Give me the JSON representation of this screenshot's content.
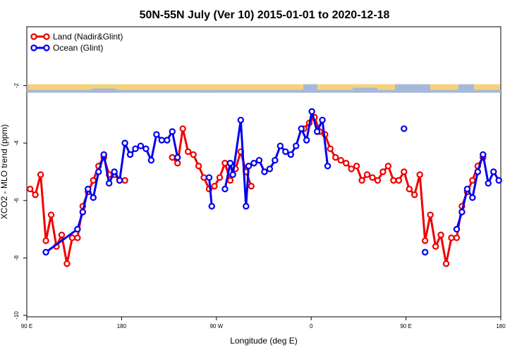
{
  "chart_data": {
    "type": "line",
    "title": "50N-55N July (Ver 10)   2015-01-01 to 2020-12-18",
    "xlabel": "Longitude (deg E)",
    "ylabel": "XCO2 - MLO trend (ppm)",
    "xlim": [
      90,
      450
    ],
    "ylim": [
      -10,
      0
    ],
    "x_ticks": [
      {
        "value": 90,
        "label": "90 E"
      },
      {
        "value": 162,
        "label": "180"
      },
      {
        "value": 234,
        "label": "90 W"
      },
      {
        "value": 306,
        "label": "0"
      },
      {
        "value": 378,
        "label": "90 E"
      },
      {
        "value": 450,
        "label": "180"
      }
    ],
    "y_ticks": [
      {
        "value": -2,
        "label": "-2"
      },
      {
        "value": -4,
        "label": "-4"
      },
      {
        "value": -6,
        "label": "-6"
      },
      {
        "value": -8,
        "label": "-8"
      },
      {
        "value": -10,
        "label": "-10"
      }
    ],
    "legend_position": "top-left",
    "land_mask_band": {
      "y_center": -2.1,
      "land_color": "#f5d37a",
      "ocean_color": "#a6b9db"
    },
    "series": [
      {
        "name": "Land (Nadir&Glint)",
        "color": "#ee0000",
        "points": [
          [
            92.5,
            -5.6
          ],
          [
            96.5,
            -5.8
          ],
          [
            100.5,
            -5.1
          ],
          [
            104.5,
            -7.4
          ],
          [
            108.5,
            -6.5
          ],
          [
            112.5,
            -7.6
          ],
          [
            116.5,
            -7.2
          ],
          [
            120.5,
            -8.2
          ],
          [
            124.5,
            -7.3
          ],
          [
            128.5,
            -7.3
          ],
          [
            132.5,
            -6.2
          ],
          [
            136.5,
            -5.7
          ],
          [
            140.5,
            -5.3
          ],
          [
            144.5,
            -4.8
          ],
          [
            148.5,
            -4.5
          ],
          [
            152.5,
            -5.1
          ],
          [
            156.5,
            -5.1
          ],
          [
            160.5,
            -5.3
          ],
          [
            164.5,
            -5.3
          ],
          [
            200.5,
            -4.5
          ],
          [
            204.5,
            -4.7
          ],
          [
            208.5,
            -3.5
          ],
          [
            212.5,
            -4.3
          ],
          [
            216.5,
            -4.4
          ],
          [
            220.5,
            -4.8
          ],
          [
            224.5,
            -5.2
          ],
          [
            228.5,
            -5.6
          ],
          [
            232.5,
            -5.5
          ],
          [
            236.5,
            -5.2
          ],
          [
            240.5,
            -4.7
          ],
          [
            244.5,
            -5.3
          ],
          [
            248.5,
            -4.9
          ],
          [
            252.5,
            -4.3
          ],
          [
            256.5,
            -5.0
          ],
          [
            260.5,
            -5.5
          ],
          [
            300.5,
            -3.5
          ],
          [
            304.5,
            -3.3
          ],
          [
            308.5,
            -3.1
          ],
          [
            312.5,
            -3.6
          ],
          [
            316.5,
            -3.7
          ],
          [
            320.5,
            -4.2
          ],
          [
            324.5,
            -4.5
          ],
          [
            328.5,
            -4.6
          ],
          [
            332.5,
            -4.7
          ],
          [
            336.5,
            -4.9
          ],
          [
            340.5,
            -4.8
          ],
          [
            344.5,
            -5.3
          ],
          [
            348.5,
            -5.1
          ],
          [
            352.5,
            -5.2
          ],
          [
            356.5,
            -5.3
          ],
          [
            360.5,
            -5.0
          ],
          [
            364.5,
            -4.8
          ],
          [
            368.5,
            -5.3
          ],
          [
            372.5,
            -5.3
          ],
          [
            376.5,
            -5.0
          ],
          [
            380.5,
            -5.6
          ],
          [
            384.5,
            -5.8
          ],
          [
            388.5,
            -5.1
          ],
          [
            392.5,
            -7.4
          ],
          [
            396.5,
            -6.5
          ],
          [
            400.5,
            -7.6
          ],
          [
            404.5,
            -7.2
          ],
          [
            408.5,
            -8.2
          ],
          [
            412.5,
            -7.3
          ],
          [
            416.5,
            -7.3
          ],
          [
            420.5,
            -6.2
          ],
          [
            424.5,
            -5.7
          ],
          [
            428.5,
            -5.3
          ],
          [
            432.5,
            -4.8
          ],
          [
            436.5,
            -4.5
          ]
        ]
      },
      {
        "name": "Ocean (Glint)",
        "color": "#0000ee",
        "points": [
          [
            104.5,
            -7.8
          ],
          [
            128.5,
            -7.0
          ],
          [
            132.5,
            -6.4
          ],
          [
            136.5,
            -5.6
          ],
          [
            140.5,
            -5.9
          ],
          [
            144.5,
            -5.0
          ],
          [
            148.5,
            -4.4
          ],
          [
            152.5,
            -5.4
          ],
          [
            156.5,
            -5.0
          ],
          [
            160.5,
            -5.3
          ],
          [
            164.5,
            -4.0
          ],
          [
            168.5,
            -4.4
          ],
          [
            172.5,
            -4.2
          ],
          [
            176.5,
            -4.1
          ],
          [
            180.5,
            -4.2
          ],
          [
            184.5,
            -4.6
          ],
          [
            188.5,
            -3.7
          ],
          [
            192.5,
            -3.9
          ],
          [
            196.5,
            -3.9
          ],
          [
            200.5,
            -3.6
          ],
          [
            204.5,
            -4.5
          ],
          [
            228.5,
            -5.2
          ],
          [
            230.5,
            -6.2
          ],
          [
            240.5,
            -5.6
          ],
          [
            244.5,
            -4.7
          ],
          [
            246.5,
            -5.1
          ],
          [
            252.5,
            -3.2
          ],
          [
            256.5,
            -6.2
          ],
          [
            258.5,
            -4.8
          ],
          [
            262.5,
            -4.7
          ],
          [
            266.5,
            -4.6
          ],
          [
            270.5,
            -5.0
          ],
          [
            274.5,
            -4.9
          ],
          [
            278.5,
            -4.6
          ],
          [
            282.5,
            -4.1
          ],
          [
            286.5,
            -4.3
          ],
          [
            290.5,
            -4.4
          ],
          [
            294.5,
            -4.1
          ],
          [
            298.5,
            -3.5
          ],
          [
            302.5,
            -3.9
          ],
          [
            306.5,
            -2.9
          ],
          [
            310.5,
            -3.6
          ],
          [
            314.5,
            -3.2
          ],
          [
            318.5,
            -4.8
          ],
          [
            376.5,
            -3.5
          ],
          [
            392.5,
            -7.8
          ],
          [
            416.5,
            -7.0
          ],
          [
            420.5,
            -6.4
          ],
          [
            424.5,
            -5.6
          ],
          [
            428.5,
            -5.9
          ],
          [
            432.5,
            -5.0
          ],
          [
            436.5,
            -4.4
          ],
          [
            440.5,
            -5.4
          ],
          [
            444.5,
            -5.0
          ],
          [
            448.5,
            -5.3
          ]
        ]
      }
    ]
  }
}
